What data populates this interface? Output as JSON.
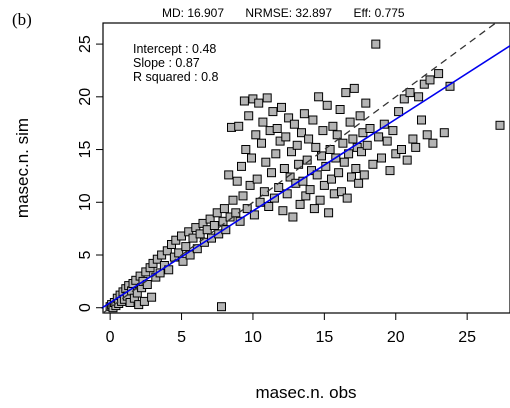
{
  "panel_label": "(b)",
  "header": {
    "md": "MD: 16.907",
    "nrmse": "NRMSE: 32.897",
    "eff": "Eff: 0.775"
  },
  "annotations": {
    "intercept": "Intercept : 0.48",
    "slope": "Slope : 0.87",
    "r_squared": "R squared : 0.8"
  },
  "colors": {
    "points_fill": "#b4b4b4",
    "points_stroke": "#000000",
    "fit_line": "#0000ee",
    "identity_line": "#333333"
  },
  "chart_data": {
    "type": "scatter",
    "title": "",
    "xlabel": "masec.n. obs",
    "ylabel": "masec.n. sim",
    "xlim": [
      -0.5,
      28
    ],
    "ylim": [
      -0.5,
      27
    ],
    "xticks": [
      0,
      5,
      10,
      15,
      20,
      25
    ],
    "yticks": [
      0,
      5,
      10,
      15,
      20,
      25
    ],
    "identity_line": true,
    "fit_line": {
      "intercept": 0.48,
      "slope": 0.87
    },
    "grid": false,
    "points": [
      [
        0.0,
        0.1
      ],
      [
        0.1,
        0.3
      ],
      [
        0.2,
        0.0
      ],
      [
        0.3,
        0.5
      ],
      [
        0.4,
        0.2
      ],
      [
        0.5,
        0.9
      ],
      [
        0.6,
        0.4
      ],
      [
        0.7,
        1.2
      ],
      [
        0.8,
        0.6
      ],
      [
        0.9,
        1.5
      ],
      [
        1.0,
        0.8
      ],
      [
        1.1,
        1.8
      ],
      [
        1.2,
        1.1
      ],
      [
        1.3,
        2.1
      ],
      [
        1.4,
        0.5
      ],
      [
        1.5,
        1.6
      ],
      [
        1.6,
        2.3
      ],
      [
        1.7,
        0.9
      ],
      [
        1.8,
        2.6
      ],
      [
        1.9,
        1.4
      ],
      [
        2.0,
        0.3
      ],
      [
        2.1,
        3.0
      ],
      [
        2.2,
        1.9
      ],
      [
        2.3,
        2.5
      ],
      [
        2.4,
        0.6
      ],
      [
        2.5,
        3.4
      ],
      [
        2.6,
        2.2
      ],
      [
        2.8,
        3.8
      ],
      [
        2.9,
        1.0
      ],
      [
        3.0,
        4.2
      ],
      [
        3.2,
        2.9
      ],
      [
        3.3,
        4.6
      ],
      [
        3.5,
        3.3
      ],
      [
        3.6,
        5.0
      ],
      [
        3.8,
        4.0
      ],
      [
        4.0,
        5.4
      ],
      [
        4.1,
        3.6
      ],
      [
        4.3,
        6.0
      ],
      [
        4.5,
        4.8
      ],
      [
        4.6,
        6.4
      ],
      [
        4.8,
        5.2
      ],
      [
        5.0,
        6.8
      ],
      [
        5.1,
        4.4
      ],
      [
        5.3,
        5.8
      ],
      [
        5.5,
        7.2
      ],
      [
        5.6,
        5.0
      ],
      [
        5.8,
        6.6
      ],
      [
        6.0,
        7.6
      ],
      [
        6.1,
        5.6
      ],
      [
        6.3,
        7.0
      ],
      [
        6.5,
        8.0
      ],
      [
        6.6,
        6.2
      ],
      [
        6.8,
        7.4
      ],
      [
        7.0,
        8.4
      ],
      [
        7.1,
        6.6
      ],
      [
        7.3,
        7.8
      ],
      [
        7.5,
        9.0
      ],
      [
        7.6,
        7.0
      ],
      [
        7.8,
        0.1
      ],
      [
        7.9,
        8.2
      ],
      [
        8.0,
        9.4
      ],
      [
        8.1,
        7.4
      ],
      [
        8.3,
        12.6
      ],
      [
        8.4,
        8.6
      ],
      [
        8.5,
        17.1
      ],
      [
        8.6,
        10.2
      ],
      [
        8.8,
        9.0
      ],
      [
        8.9,
        12.0
      ],
      [
        9.0,
        17.2
      ],
      [
        9.1,
        8.2
      ],
      [
        9.2,
        13.4
      ],
      [
        9.3,
        10.6
      ],
      [
        9.4,
        19.6
      ],
      [
        9.5,
        15.0
      ],
      [
        9.6,
        9.4
      ],
      [
        9.7,
        18.2
      ],
      [
        9.8,
        11.6
      ],
      [
        9.9,
        14.2
      ],
      [
        10.0,
        19.8
      ],
      [
        10.1,
        8.8
      ],
      [
        10.2,
        16.4
      ],
      [
        10.3,
        12.2
      ],
      [
        10.4,
        19.4
      ],
      [
        10.5,
        10.0
      ],
      [
        10.6,
        15.6
      ],
      [
        10.7,
        17.6
      ],
      [
        10.8,
        11.0
      ],
      [
        10.9,
        13.8
      ],
      [
        11.0,
        19.9
      ],
      [
        11.1,
        9.6
      ],
      [
        11.2,
        16.8
      ],
      [
        11.3,
        12.8
      ],
      [
        11.4,
        18.6
      ],
      [
        11.5,
        10.4
      ],
      [
        11.6,
        14.6
      ],
      [
        11.7,
        17.0
      ],
      [
        11.8,
        11.4
      ],
      [
        11.9,
        15.8
      ],
      [
        12.0,
        19.0
      ],
      [
        12.1,
        9.2
      ],
      [
        12.2,
        13.2
      ],
      [
        12.3,
        16.2
      ],
      [
        12.4,
        10.8
      ],
      [
        12.5,
        18.0
      ],
      [
        12.6,
        12.4
      ],
      [
        12.7,
        14.8
      ],
      [
        12.8,
        8.6
      ],
      [
        12.9,
        17.4
      ],
      [
        13.0,
        11.8
      ],
      [
        13.1,
        15.4
      ],
      [
        13.2,
        13.6
      ],
      [
        13.3,
        9.8
      ],
      [
        13.4,
        16.6
      ],
      [
        13.5,
        12.0
      ],
      [
        13.6,
        18.4
      ],
      [
        13.7,
        10.6
      ],
      [
        13.8,
        14.0
      ],
      [
        13.9,
        16.0
      ],
      [
        14.0,
        11.2
      ],
      [
        14.1,
        13.0
      ],
      [
        14.2,
        17.8
      ],
      [
        14.3,
        9.4
      ],
      [
        14.4,
        15.2
      ],
      [
        14.5,
        12.6
      ],
      [
        14.6,
        20.0
      ],
      [
        14.7,
        10.2
      ],
      [
        14.8,
        14.4
      ],
      [
        14.9,
        16.8
      ],
      [
        15.0,
        11.6
      ],
      [
        15.1,
        13.4
      ],
      [
        15.2,
        19.2
      ],
      [
        15.3,
        9.0
      ],
      [
        15.4,
        15.0
      ],
      [
        15.5,
        12.2
      ],
      [
        15.6,
        17.2
      ],
      [
        15.7,
        10.8
      ],
      [
        15.8,
        14.2
      ],
      [
        15.9,
        16.4
      ],
      [
        16.0,
        12.8
      ],
      [
        16.1,
        18.8
      ],
      [
        16.2,
        11.0
      ],
      [
        16.3,
        15.6
      ],
      [
        16.4,
        13.8
      ],
      [
        16.5,
        20.4
      ],
      [
        16.6,
        10.4
      ],
      [
        16.7,
        14.6
      ],
      [
        16.8,
        17.6
      ],
      [
        16.9,
        12.4
      ],
      [
        17.0,
        16.0
      ],
      [
        17.1,
        20.8
      ],
      [
        17.2,
        13.2
      ],
      [
        17.3,
        15.2
      ],
      [
        17.4,
        11.8
      ],
      [
        17.5,
        18.2
      ],
      [
        17.6,
        14.8
      ],
      [
        17.7,
        16.6
      ],
      [
        17.8,
        12.6
      ],
      [
        17.9,
        19.4
      ],
      [
        18.0,
        15.4
      ],
      [
        18.2,
        17.0
      ],
      [
        18.4,
        13.6
      ],
      [
        18.6,
        25.0
      ],
      [
        18.8,
        16.2
      ],
      [
        19.0,
        14.2
      ],
      [
        19.2,
        17.4
      ],
      [
        19.4,
        15.8
      ],
      [
        19.6,
        13.0
      ],
      [
        19.8,
        16.8
      ],
      [
        20.0,
        14.6
      ],
      [
        20.2,
        18.6
      ],
      [
        20.4,
        15.0
      ],
      [
        20.6,
        19.8
      ],
      [
        20.8,
        14.0
      ],
      [
        21.0,
        20.4
      ],
      [
        21.2,
        16.0
      ],
      [
        21.4,
        15.2
      ],
      [
        21.6,
        20.0
      ],
      [
        21.8,
        17.8
      ],
      [
        22.0,
        21.2
      ],
      [
        22.2,
        16.4
      ],
      [
        22.4,
        21.6
      ],
      [
        22.6,
        15.6
      ],
      [
        23.0,
        22.2
      ],
      [
        23.4,
        16.6
      ],
      [
        23.8,
        21.0
      ],
      [
        27.3,
        17.3
      ]
    ]
  }
}
